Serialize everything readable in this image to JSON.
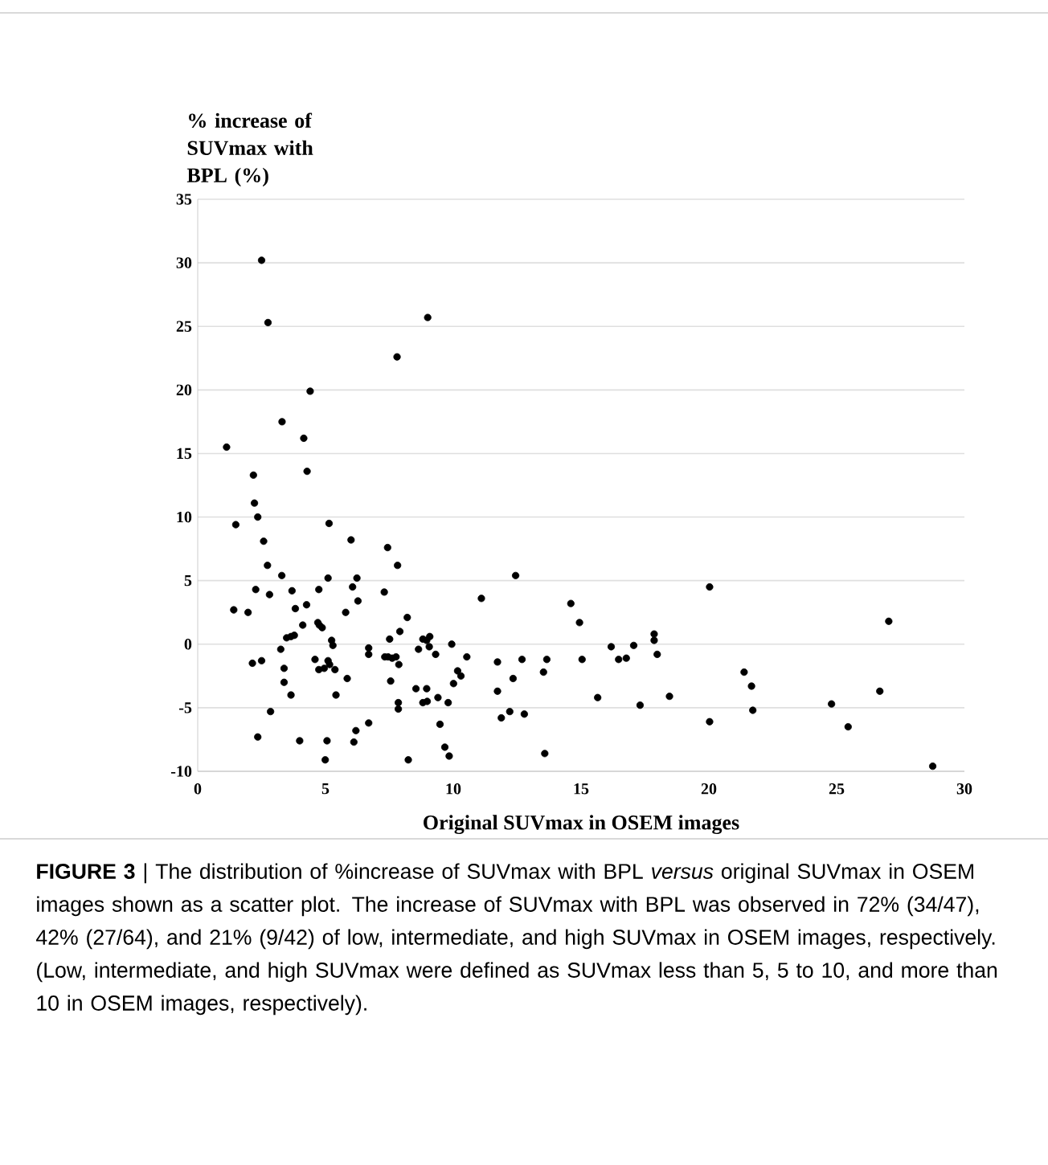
{
  "chart_data": {
    "type": "scatter",
    "ylabel": "% increase of SUVmax with BPL (%)",
    "xlabel": "Original SUVmax in OSEM images",
    "annotations": [
      "**FIGURE 3** | The distribution of %increase of SUVmax with BPL *versus* original SUVmax in OSEM images shown as a scatter plot. The increase of SUVmax with BPL was observed in 72% (34/47), 42% (27/64), and 21% (9/42) of low, intermediate, and high SUVmax in OSEM images, respectively. (Low, intermediate, and high SUVmax were defined as SUVmax less than 5, 5 to 10, and more than 10 in OSEM images, respectively)."
    ],
    "x": [
      2.5,
      2.75,
      9.0,
      7.8,
      4.4,
      3.3,
      4.15,
      1.13,
      4.28,
      2.18,
      2.22,
      2.35,
      1.49,
      5.14,
      2.58,
      6.0,
      7.43,
      2.73,
      7.82,
      3.29,
      5.1,
      6.23,
      2.27,
      3.69,
      4.74,
      6.06,
      7.3,
      2.81,
      6.27,
      11.1,
      4.26,
      1.41,
      1.97,
      3.82,
      5.79,
      8.2,
      4.11,
      4.7,
      4.76,
      4.87,
      7.91,
      3.48,
      3.65,
      3.78,
      5.24,
      5.29,
      6.69,
      6.69,
      7.51,
      8.81,
      8.96,
      9.08,
      9.94,
      8.64,
      9.06,
      9.31,
      10.53,
      3.25,
      7.32,
      7.45,
      7.61,
      7.76,
      2.14,
      2.5,
      4.59,
      5.1,
      5.16,
      4.74,
      4.95,
      5.37,
      3.38,
      7.87,
      10.17,
      10.3,
      3.38,
      5.85,
      7.55,
      8.54,
      8.96,
      10.01,
      3.65,
      5.41,
      9.4,
      8.81,
      8.98,
      9.8,
      7.85,
      7.85,
      2.85,
      9.48,
      6.69,
      6.19,
      2.35,
      3.99,
      5.06,
      6.11,
      9.67,
      9.84,
      4.99,
      8.24,
      11.73,
      11.73,
      11.88,
      12.21,
      12.34,
      12.44,
      12.69,
      12.78,
      13.53,
      13.66,
      13.58,
      14.6,
      14.94,
      15.04,
      15.65,
      16.18,
      16.47,
      16.77,
      17.06,
      17.31,
      17.86,
      17.86,
      17.98,
      18.46,
      20.03,
      20.03,
      21.38,
      21.67,
      21.72,
      27.04,
      26.69,
      24.8,
      25.45,
      28.76
    ],
    "values": [
      30.2,
      25.3,
      25.7,
      22.6,
      19.9,
      17.5,
      16.2,
      15.5,
      13.6,
      13.3,
      11.1,
      10.0,
      9.4,
      9.5,
      8.1,
      8.2,
      7.6,
      6.2,
      6.2,
      5.4,
      5.2,
      5.2,
      4.3,
      4.2,
      4.3,
      4.5,
      4.1,
      3.9,
      3.4,
      3.6,
      3.1,
      2.7,
      2.5,
      2.8,
      2.5,
      2.1,
      1.5,
      1.7,
      1.5,
      1.3,
      1.0,
      0.5,
      0.6,
      0.7,
      0.3,
      -0.1,
      -0.3,
      -0.8,
      0.4,
      0.4,
      0.3,
      0.6,
      0.0,
      -0.4,
      -0.2,
      -0.8,
      -1.0,
      -0.4,
      -1.0,
      -1.0,
      -1.1,
      -1.0,
      -1.5,
      -1.3,
      -1.2,
      -1.3,
      -1.6,
      -2.0,
      -1.9,
      -2.0,
      -1.9,
      -1.6,
      -2.1,
      -2.5,
      -3.0,
      -2.7,
      -2.9,
      -3.5,
      -3.5,
      -3.1,
      -4.0,
      -4.0,
      -4.2,
      -4.6,
      -4.5,
      -4.6,
      -4.6,
      -5.1,
      -5.3,
      -6.3,
      -6.2,
      -6.8,
      -7.3,
      -7.6,
      -7.6,
      -7.7,
      -8.1,
      -8.8,
      -9.1,
      -9.1,
      -1.4,
      -3.7,
      -5.8,
      -5.3,
      -2.7,
      5.4,
      -1.2,
      -5.5,
      -2.2,
      -1.2,
      -8.6,
      3.2,
      1.7,
      -1.2,
      -4.2,
      -0.2,
      -1.2,
      -1.1,
      -0.1,
      -4.8,
      0.8,
      0.3,
      -0.8,
      -4.1,
      4.5,
      -6.1,
      -2.2,
      -3.3,
      -5.2,
      1.8,
      -3.7,
      -4.7,
      -6.5,
      -9.6
    ],
    "color": "#000000",
    "marker": "circle",
    "xlim": [
      0,
      30
    ],
    "xticks": [
      0,
      5,
      10,
      15,
      20,
      25,
      30
    ],
    "ylim": [
      -10,
      35
    ],
    "yticks": [
      -10,
      -5,
      0,
      5,
      10,
      15,
      20,
      25,
      30,
      35
    ],
    "grid": "y"
  }
}
